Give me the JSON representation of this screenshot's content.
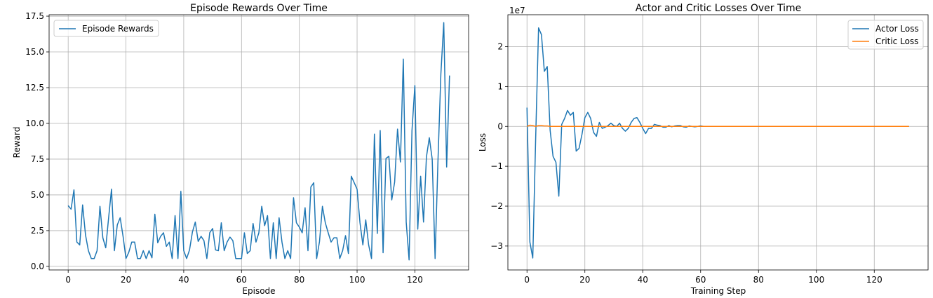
{
  "chart_data": [
    {
      "type": "line",
      "title": "Episode Rewards Over Time",
      "xlabel": "Episode",
      "ylabel": "Reward",
      "xlim": [
        -6.6,
        138.6
      ],
      "ylim": [
        -0.25,
        17.6
      ],
      "xticks": [
        0,
        20,
        40,
        60,
        80,
        100,
        120
      ],
      "xtick_labels": [
        "0",
        "20",
        "40",
        "60",
        "80",
        "100",
        "120"
      ],
      "yticks": [
        0,
        2.5,
        5,
        7.5,
        10,
        12.5,
        15,
        17.5
      ],
      "ytick_labels": [
        "0.0",
        "2.5",
        "5.0",
        "7.5",
        "10.0",
        "12.5",
        "15.0",
        "17.5"
      ],
      "grid": true,
      "legend_position": "top-left",
      "series": [
        {
          "name": "Episode Rewards",
          "color": "#1f77b4",
          "values": [
            4.25,
            4.0,
            5.35,
            1.7,
            1.5,
            4.3,
            2.2,
            1.1,
            0.55,
            0.55,
            1.1,
            4.2,
            2.0,
            1.3,
            3.4,
            5.4,
            1.1,
            2.9,
            3.4,
            2.1,
            0.55,
            1.0,
            1.7,
            1.7,
            0.55,
            0.55,
            1.1,
            0.55,
            1.1,
            0.6,
            3.65,
            1.65,
            2.1,
            2.35,
            1.4,
            1.7,
            0.55,
            3.55,
            0.55,
            5.25,
            1.1,
            0.55,
            1.15,
            2.4,
            3.1,
            1.75,
            2.1,
            1.8,
            0.55,
            2.35,
            2.65,
            1.15,
            1.1,
            3.05,
            1.1,
            1.7,
            2.05,
            1.8,
            0.55,
            0.55,
            0.55,
            2.35,
            0.9,
            1.1,
            3.0,
            1.7,
            2.35,
            4.2,
            2.85,
            3.55,
            0.55,
            3.05,
            0.55,
            3.4,
            1.7,
            0.55,
            1.1,
            0.55,
            4.8,
            3.05,
            2.75,
            2.35,
            4.1,
            1.1,
            5.55,
            5.85,
            0.55,
            1.75,
            4.2,
            3.05,
            2.35,
            1.7,
            2.0,
            2.0,
            0.55,
            1.1,
            2.15,
            0.9,
            6.3,
            5.85,
            5.4,
            3.05,
            1.5,
            3.25,
            1.5,
            0.55,
            9.25,
            2.3,
            9.5,
            0.95,
            7.55,
            7.7,
            4.65,
            5.9,
            9.6,
            7.3,
            14.5,
            3.1,
            0.45,
            9.5,
            12.65,
            2.6,
            6.3,
            3.1,
            7.65,
            9.0,
            7.5,
            0.55,
            7.4,
            13.45,
            17.05,
            6.95,
            13.35
          ]
        }
      ]
    },
    {
      "type": "line",
      "title": "Actor and Critic Losses Over Time",
      "xlabel": "Training Step",
      "ylabel": "Loss",
      "offset_text": "1e7",
      "xlim": [
        -6.6,
        138.6
      ],
      "ylim": [
        -3.6,
        2.8
      ],
      "xticks": [
        0,
        20,
        40,
        60,
        80,
        100,
        120
      ],
      "xtick_labels": [
        "0",
        "20",
        "40",
        "60",
        "80",
        "100",
        "120"
      ],
      "yticks": [
        -3,
        -2,
        -1,
        0,
        1,
        2
      ],
      "ytick_labels": [
        "−3",
        "−2",
        "−1",
        "0",
        "1",
        "2"
      ],
      "grid": true,
      "legend_position": "top-right",
      "series": [
        {
          "name": "Actor Loss",
          "color": "#1f77b4",
          "values": [
            0.47,
            -2.9,
            -3.3,
            -0.3,
            2.47,
            2.3,
            1.38,
            1.5,
            -0.1,
            -0.75,
            -0.9,
            -1.75,
            0.05,
            0.2,
            0.4,
            0.28,
            0.35,
            -0.62,
            -0.55,
            -0.2,
            0.22,
            0.35,
            0.2,
            -0.15,
            -0.25,
            0.1,
            -0.05,
            -0.02,
            0.02,
            0.08,
            0.02,
            0.0,
            0.08,
            -0.05,
            -0.12,
            -0.05,
            0.1,
            0.2,
            0.22,
            0.1,
            -0.05,
            -0.18,
            -0.05,
            -0.05,
            0.05,
            0.03,
            0.02,
            -0.02,
            -0.02,
            0.02,
            -0.01,
            0.01,
            0.02,
            0.02,
            -0.01,
            -0.02,
            0.01,
            0.0,
            -0.01,
            0.0,
            0.01,
            0.0,
            0.0,
            0.0,
            0.0,
            0.0,
            0.0,
            0.0,
            0.0,
            0.0,
            0.0,
            0.0,
            0.0,
            0.0,
            0.0,
            0.0,
            0.0,
            0.0,
            0.0,
            0.0,
            0.0,
            0.0,
            0.0,
            0.0,
            0.0,
            0.0,
            0.0,
            0.0,
            0.0,
            0.0,
            0.0,
            0.0,
            0.0,
            0.0,
            0.0,
            0.0,
            0.0,
            0.0,
            0.0,
            0.0,
            0.0,
            0.0,
            0.0,
            0.0,
            0.0,
            0.0,
            0.0,
            0.0,
            0.0,
            0.0,
            0.0,
            0.0,
            0.0,
            0.0,
            0.0,
            0.0,
            0.0,
            0.0,
            0.0,
            0.0,
            0.0,
            0.0,
            0.0,
            0.0,
            0.0,
            0.0,
            0.0,
            0.0,
            0.0,
            0.0,
            0.0,
            0.0,
            0.0
          ]
        },
        {
          "name": "Critic Loss",
          "color": "#ff7f0e",
          "values": [
            0.0,
            0.03,
            0.02,
            0.0,
            0.02,
            0.02,
            0.01,
            0.01,
            0.0,
            0.0,
            0.0,
            0.0,
            0.0,
            0.0,
            0.0,
            0.0,
            0.0,
            0.0,
            0.0,
            0.0,
            0.0,
            0.0,
            0.0,
            0.0,
            0.0,
            0.0,
            0.0,
            0.0,
            0.0,
            0.0,
            0.0,
            0.0,
            0.0,
            0.0,
            0.0,
            0.0,
            0.0,
            0.0,
            0.0,
            0.0,
            0.0,
            0.0,
            0.0,
            0.0,
            0.0,
            0.0,
            0.0,
            0.0,
            0.0,
            0.0,
            0.0,
            0.0,
            0.0,
            0.0,
            0.0,
            0.0,
            0.0,
            0.0,
            0.0,
            0.0,
            0.0,
            0.0,
            0.0,
            0.0,
            0.0,
            0.0,
            0.0,
            0.0,
            0.0,
            0.0,
            0.0,
            0.0,
            0.0,
            0.0,
            0.0,
            0.0,
            0.0,
            0.0,
            0.0,
            0.0,
            0.0,
            0.0,
            0.0,
            0.0,
            0.0,
            0.0,
            0.0,
            0.0,
            0.0,
            0.0,
            0.0,
            0.0,
            0.0,
            0.0,
            0.0,
            0.0,
            0.0,
            0.0,
            0.0,
            0.0,
            0.0,
            0.0,
            0.0,
            0.0,
            0.0,
            0.0,
            0.0,
            0.0,
            0.0,
            0.0,
            0.0,
            0.0,
            0.0,
            0.0,
            0.0,
            0.0,
            0.0,
            0.0,
            0.0,
            0.0,
            0.0,
            0.0,
            0.0,
            0.0,
            0.0,
            0.0,
            0.0,
            0.0,
            0.0,
            0.0,
            0.0,
            0.0,
            0.0
          ]
        }
      ]
    }
  ]
}
